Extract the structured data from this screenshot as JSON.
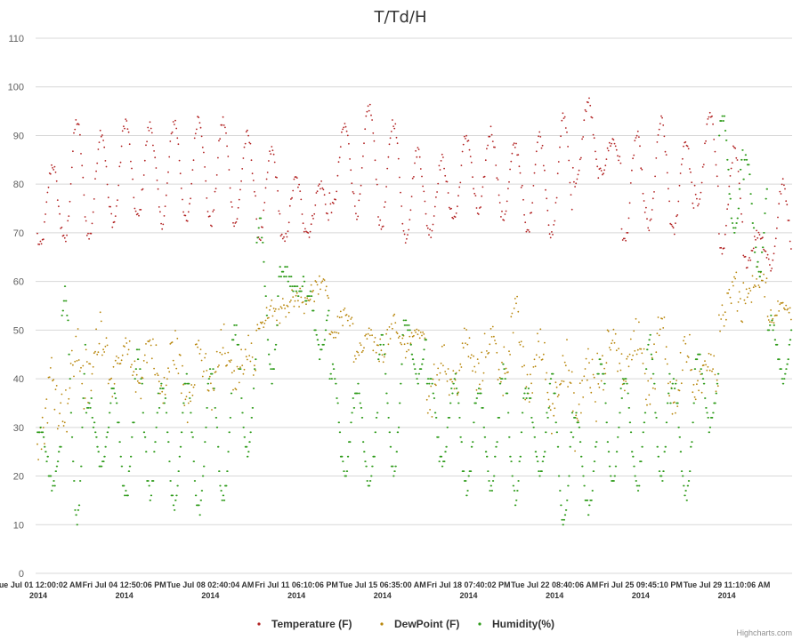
{
  "chart_data": {
    "type": "scatter",
    "title": "T/Td/H",
    "yaxis": {
      "min": 0,
      "max": 110,
      "ticks": [
        0,
        10,
        20,
        30,
        40,
        50,
        60,
        70,
        80,
        90,
        100,
        110
      ]
    },
    "xaxis": {
      "range": [
        "2014-07-01 12:00",
        "2014-08-01 08:00"
      ],
      "ticks": [
        {
          "line1": "Tue Jul 01 12:00:02 AM",
          "line2": "2014"
        },
        {
          "line1": "Fri Jul 04 12:50:06 PM",
          "line2": "2014"
        },
        {
          "line1": "Tue Jul 08 02:40:04 AM",
          "line2": "2014"
        },
        {
          "line1": "Fri Jul 11 06:10:06 PM",
          "line2": "2014"
        },
        {
          "line1": "Tue Jul 15 06:35:00 AM",
          "line2": "2014"
        },
        {
          "line1": "Fri Jul 18 07:40:02 PM",
          "line2": "2014"
        },
        {
          "line1": "Tue Jul 22 08:40:06 AM",
          "line2": "2014"
        },
        {
          "line1": "Fri Jul 25 09:45:10 PM",
          "line2": "2014"
        },
        {
          "line1": "Tue Jul 29 11:10:06 AM",
          "line2": "2014"
        }
      ]
    },
    "grid": true,
    "legend_position": "bottom-center",
    "series": [
      {
        "name": "Temperature (F)",
        "color": "#b22222",
        "daily_min": [
          67,
          68,
          69,
          72,
          73,
          72,
          72,
          72,
          72,
          69,
          68,
          70,
          75,
          74,
          71,
          69,
          70,
          73,
          74,
          73,
          70,
          69,
          80,
          82,
          68,
          71,
          70,
          76,
          66,
          64,
          63
        ],
        "daily_max": [
          84,
          93,
          91,
          93,
          92,
          93,
          94,
          93,
          90,
          87,
          81,
          80,
          92,
          96,
          93,
          87,
          85,
          90,
          91,
          88,
          90,
          94,
          97,
          89,
          90,
          93,
          89,
          94,
          87,
          70,
          80
        ]
      },
      {
        "name": "DewPoint (F)",
        "color": "#b8860b",
        "daily_min": [
          24,
          30,
          35,
          38,
          36,
          33,
          32,
          34,
          38,
          50,
          54,
          56,
          48,
          43,
          44,
          46,
          33,
          36,
          37,
          38,
          34,
          30,
          27,
          37,
          38,
          34,
          32,
          34,
          50,
          56,
          51
        ],
        "daily_max": [
          45,
          50,
          55,
          48,
          50,
          50,
          50,
          50,
          48,
          55,
          58,
          60,
          55,
          50,
          52,
          51,
          48,
          50,
          52,
          56,
          50,
          48,
          47,
          52,
          52,
          54,
          50,
          48,
          61,
          62,
          56
        ]
      },
      {
        "name": "Humidity(%)",
        "color": "#2e9b1a",
        "daily_min": [
          18,
          11,
          22,
          16,
          16,
          14,
          13,
          15,
          24,
          40,
          58,
          45,
          20,
          18,
          21,
          40,
          22,
          17,
          18,
          15,
          20,
          10,
          13,
          18,
          18,
          20,
          16,
          30,
          70,
          62,
          40
        ],
        "daily_max": [
          30,
          58,
          35,
          38,
          45,
          38,
          40,
          42,
          50,
          72,
          62,
          58,
          42,
          38,
          48,
          52,
          40,
          40,
          38,
          42,
          38,
          40,
          32,
          44,
          40,
          48,
          40,
          45,
          94,
          85,
          52
        ]
      }
    ]
  },
  "credits": "Highcharts.com"
}
